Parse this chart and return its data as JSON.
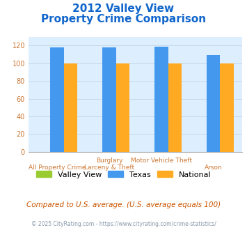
{
  "title_line1": "2012 Valley View",
  "title_line2": "Property Crime Comparison",
  "series": {
    "Valley View": [
      0,
      0,
      0,
      0
    ],
    "Texas": [
      118,
      118,
      119,
      109
    ],
    "National": [
      100,
      100,
      100,
      100
    ]
  },
  "colors": {
    "Valley View": "#99cc33",
    "Texas": "#4499ee",
    "National": "#ffaa22"
  },
  "ylim": [
    0,
    130
  ],
  "yticks": [
    0,
    20,
    40,
    60,
    80,
    100,
    120
  ],
  "background_color": "#ddeeff",
  "title_color": "#1166cc",
  "tick_color": "#cc7733",
  "label_color": "#cc7733",
  "grid_color": "#c5d8e8",
  "top_labels": [
    "",
    "Burglary",
    "Motor Vehicle Theft",
    ""
  ],
  "bot_labels": [
    "All Property Crime",
    "Larceny & Theft",
    "",
    "Arson"
  ],
  "footer_text1": "Compared to U.S. average. (U.S. average equals 100)",
  "footer_text2": "© 2025 CityRating.com - https://www.cityrating.com/crime-statistics/",
  "legend_labels": [
    "Valley View",
    "Texas",
    "National"
  ]
}
